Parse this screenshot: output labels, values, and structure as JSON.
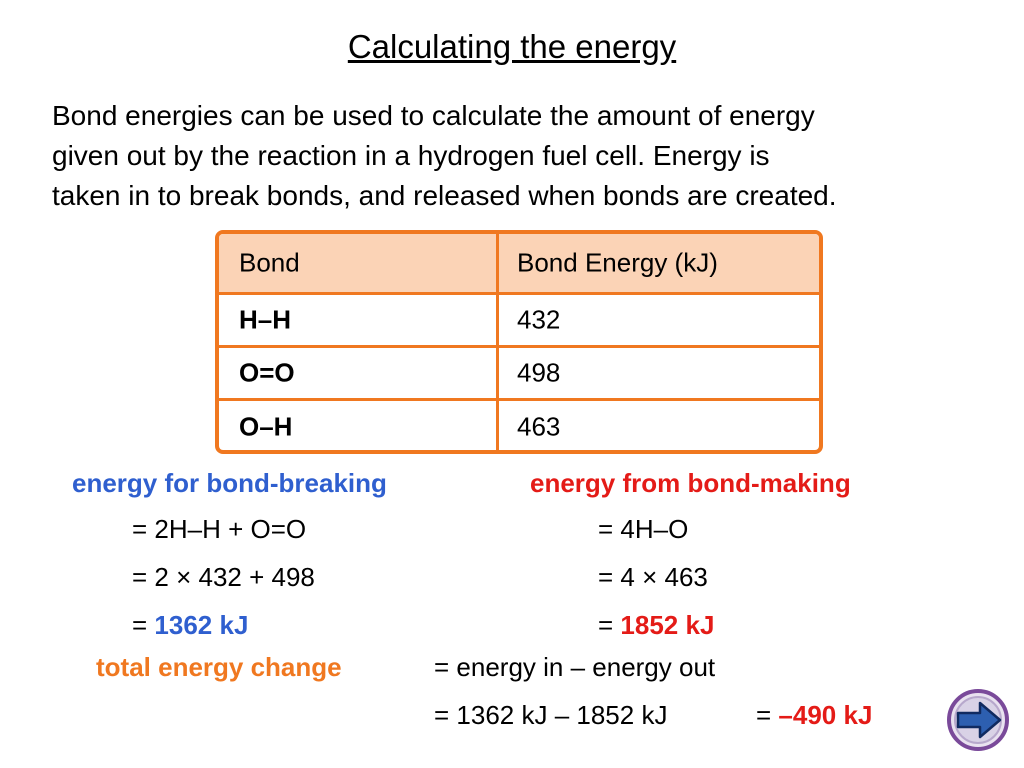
{
  "title": "Calculating the energy",
  "intro": [
    "Bond energies can be used to calculate the amount of energy",
    "given out by the reaction in a hydrogen fuel cell. Energy is",
    "taken in to break bonds, and released when bonds are created."
  ],
  "table": {
    "header": [
      "Bond",
      "Bond Energy (kJ)"
    ],
    "rows": [
      [
        "H–H",
        "432"
      ],
      [
        "O=O",
        "498"
      ],
      [
        "O–H",
        "463"
      ]
    ]
  },
  "breaking": {
    "heading": "energy for bond-breaking",
    "steps": [
      "= 2H–H  +  O=O",
      "= 2 × 432 + 498"
    ],
    "result_prefix": "=",
    "result": "1362 kJ"
  },
  "making": {
    "heading": "energy from bond-making",
    "steps": [
      "= 4H–O",
      "= 4 × 463"
    ],
    "result_prefix": "=",
    "result": "1852 kJ"
  },
  "total": {
    "label": "total energy change",
    "line1": "= energy in – energy out",
    "line2": "= 1362 kJ – 1852 kJ",
    "equals": "=",
    "result": "–490 kJ"
  }
}
